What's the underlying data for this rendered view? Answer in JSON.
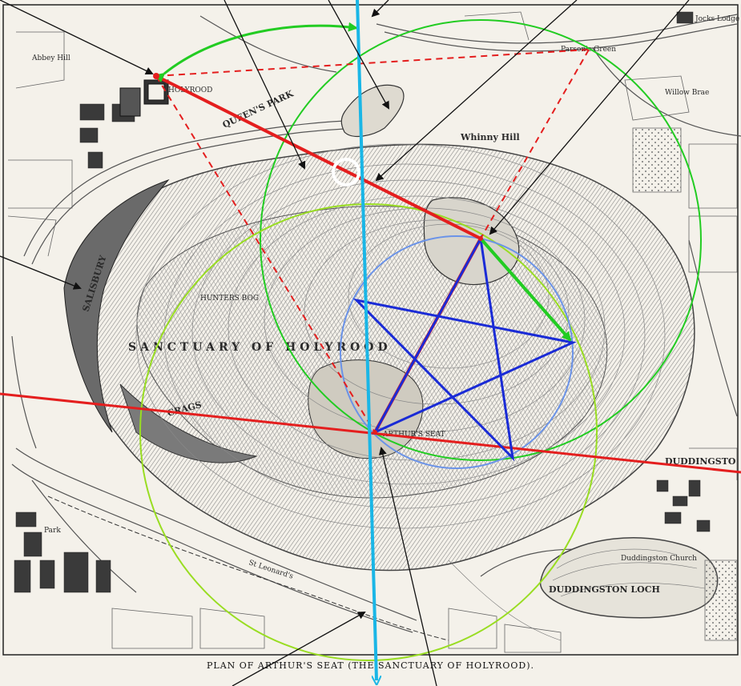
{
  "caption": "PLAN OF ARTHUR'S SEAT (THE SANCTUARY OF HOLYROOD).",
  "labels": {
    "sanctuary": "SANCTUARY OF HOLYROOD",
    "queens_park": "QUEEN'S PARK",
    "salisbury": "SALISBURY",
    "crags": "CRAGS",
    "whinny_hill": "Whinny Hill",
    "duddingston_loch": "DUDDINGSTON LOCH",
    "duddingston": "DUDDINGSTO",
    "arthurs_seat": "ARTHUR'S SEAT",
    "hunters_bog": "HUNTERS BOG",
    "st_leonards": "St Leonard's",
    "abbey_hill": "Abbey Hill",
    "parsons_green": "Parson's Green",
    "jocks_lodge": "Jocks Lodge",
    "willow_brae": "Willow Brae",
    "holyrood": "HOLYROOD",
    "duddingston_church": "Duddingston Church",
    "park": "Park"
  },
  "colors": {
    "red": "#e41e1e",
    "green": "#22cc22",
    "lime": "#99dd22",
    "blue": "#1a2bd6",
    "light_blue": "#6b93e8",
    "cyan": "#1ab6e6",
    "black": "#111111",
    "paper": "#f4f1ea",
    "ink": "#555555"
  }
}
